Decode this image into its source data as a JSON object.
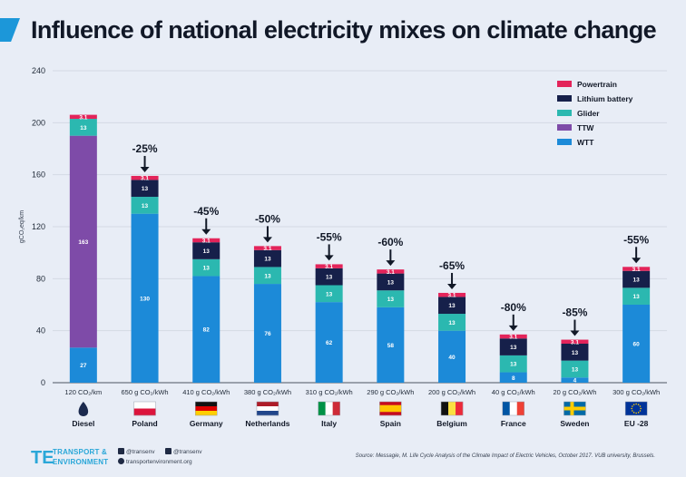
{
  "title": "Influence of national electricity mixes on climate change",
  "colors": {
    "Powertrain": "#e3245a",
    "Lithium battery": "#16204a",
    "Glider": "#2bb8b0",
    "TTW": "#7e4ba8",
    "WTT": "#1c8ad8"
  },
  "chart_data": {
    "type": "bar",
    "stacked": true,
    "ylabel": "gCO₂eq/km",
    "ylim": [
      0,
      240
    ],
    "yticks": [
      0,
      40,
      80,
      120,
      160,
      200,
      240
    ],
    "grid": true,
    "legend": "top-right",
    "categories": [
      "120 CO₂/km",
      "650 g CO₂/kWh",
      "410 g CO₂/kWh",
      "380 g CO₂/kWh",
      "310 g CO₂/kWh",
      "290 g CO₂/kWh",
      "200 g CO₂/kWh",
      "40 g CO₂/kWh",
      "20 g CO₂/kWh",
      "300 g CO₂/kWh"
    ],
    "countries": [
      "Diesel",
      "Poland",
      "Germany",
      "Netherlands",
      "Italy",
      "Spain",
      "Belgium",
      "France",
      "Sweden",
      "EU -28"
    ],
    "flag_icons": [
      "fuel-drop-icon",
      "poland-flag-icon",
      "germany-flag-icon",
      "netherlands-flag-icon",
      "italy-flag-icon",
      "spain-flag-icon",
      "belgium-flag-icon",
      "france-flag-icon",
      "sweden-flag-icon",
      "eu-flag-icon"
    ],
    "reductions": [
      "",
      "-25%",
      "-45%",
      "-50%",
      "-55%",
      "-60%",
      "-65%",
      "-80%",
      "-85%",
      "-55%"
    ],
    "series": [
      {
        "name": "WTT",
        "values": [
          27,
          130,
          82,
          76,
          62,
          58,
          40,
          8,
          4,
          60
        ],
        "labels": [
          "27",
          "130",
          "82",
          "76",
          "62",
          "58",
          "40",
          "8",
          "4",
          "60"
        ]
      },
      {
        "name": "TTW",
        "values": [
          163,
          0,
          0,
          0,
          0,
          0,
          0,
          0,
          0,
          0
        ],
        "labels": [
          "163",
          "",
          "",
          "",
          "",
          "",
          "",
          "",
          "",
          ""
        ]
      },
      {
        "name": "Glider",
        "values": [
          13,
          13,
          13,
          13,
          13,
          13,
          13,
          13,
          13,
          13
        ],
        "labels": [
          "13",
          "13",
          "13",
          "13",
          "13",
          "13",
          "13",
          "13",
          "13",
          "13"
        ]
      },
      {
        "name": "Lithium battery",
        "values": [
          0,
          13,
          13,
          13,
          13,
          13,
          13,
          13,
          13,
          13
        ],
        "labels": [
          "",
          "13",
          "13",
          "13",
          "13",
          "13",
          "13",
          "13",
          "13",
          "13"
        ]
      },
      {
        "name": "Powertrain",
        "values": [
          3.1,
          3.1,
          3.1,
          3.1,
          3.1,
          3.1,
          3.1,
          3.1,
          3.1,
          3.1
        ],
        "labels": [
          "3.1",
          "3.1",
          "3.1",
          "3.1",
          "3.1",
          "3.1",
          "3.1",
          "3.1",
          "3.1",
          "3.1"
        ]
      }
    ],
    "legend_order": [
      "Powertrain",
      "Lithium battery",
      "Glider",
      "TTW",
      "WTT"
    ]
  },
  "footer": {
    "logo_line1": "TRANSPORT &",
    "logo_line2": "ENVIRONMENT",
    "twitter": "@transenv",
    "facebook": "@transenv",
    "website": "transportenvironment.org",
    "source": "Source: Messagie, M. Life Cycle Analysis of the Climate Impact of Electric Vehicles, October 2017. VUB university, Brussels."
  }
}
